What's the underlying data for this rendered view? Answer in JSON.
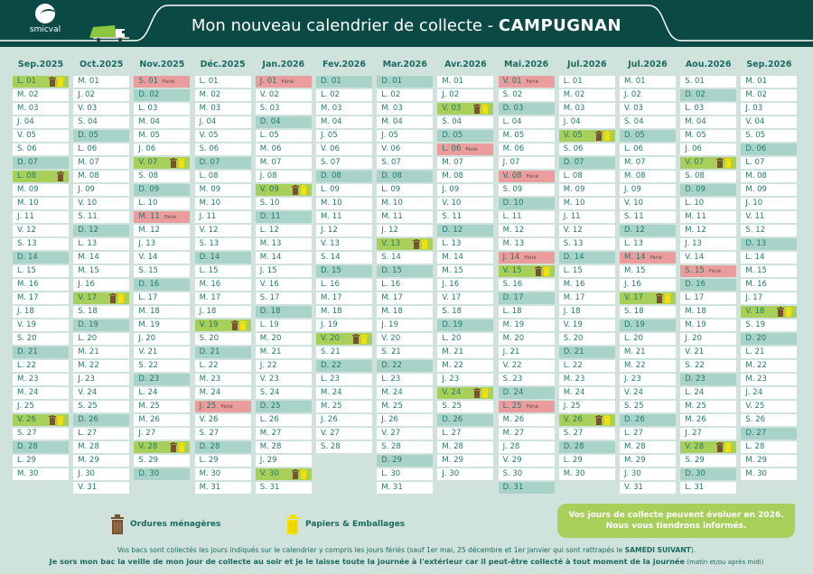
{
  "header": {
    "logo_text": "smicval",
    "title": "Mon nouveau calendrier de collecte - ",
    "commune": "CAMPUGNAN"
  },
  "colors": {
    "header": "#0b4a44",
    "background": "#cfe2dc",
    "sunday": "#a9d3c9",
    "holiday": "#eb9c9c",
    "collection": "#a8cf5a",
    "ordures": "#7a5230",
    "papiers": "#f5e000"
  },
  "months": [
    {
      "label": "Sep.2025",
      "days": [
        "L. 01",
        "M. 02",
        "M. 03",
        "J. 04",
        "V. 05",
        "S. 06",
        "D. 07",
        "L. 08",
        "M. 09",
        "M. 10",
        "J. 11",
        "V. 12",
        "S. 13",
        "D. 14",
        "L. 15",
        "M. 16",
        "M. 17",
        "J. 18",
        "V. 19",
        "S. 20",
        "D. 21",
        "L. 22",
        "M. 23",
        "M. 24",
        "J. 25",
        "V. 26",
        "S. 27",
        "D. 28",
        "L. 29",
        "M. 30"
      ],
      "holidays": {},
      "collections": {
        "01": [
          "ordures",
          "papiers"
        ],
        "08": [
          "ordures"
        ],
        "26": [
          "ordures",
          "papiers"
        ]
      }
    },
    {
      "label": "Oct.2025",
      "days": [
        "M. 01",
        "J. 02",
        "V. 03",
        "S. 04",
        "D. 05",
        "L. 06",
        "M. 07",
        "M. 08",
        "J. 09",
        "V. 10",
        "S. 11",
        "D. 12",
        "L. 13",
        "M. 14",
        "M. 15",
        "J. 16",
        "V. 17",
        "S. 18",
        "D. 19",
        "L. 20",
        "M. 21",
        "M. 22",
        "J. 23",
        "V. 24",
        "S. 25",
        "D. 26",
        "L. 27",
        "M. 28",
        "M. 29",
        "J. 30",
        "V. 31"
      ],
      "holidays": {},
      "collections": {
        "17": [
          "ordures",
          "papiers"
        ]
      }
    },
    {
      "label": "Nov.2025",
      "days": [
        "S. 01",
        "D. 02",
        "L. 03",
        "M. 04",
        "M. 05",
        "J. 06",
        "V. 07",
        "S. 08",
        "D. 09",
        "L. 10",
        "M. 11",
        "M. 12",
        "J. 13",
        "V. 14",
        "S. 15",
        "D. 16",
        "L. 17",
        "M. 18",
        "M. 19",
        "J. 20",
        "V. 21",
        "S. 22",
        "D. 23",
        "L. 24",
        "M. 25",
        "M. 26",
        "J. 27",
        "V. 28",
        "S. 29",
        "D. 30"
      ],
      "holidays": {
        "01": "Férié",
        "11": "Férié"
      },
      "collections": {
        "07": [
          "ordures",
          "papiers"
        ],
        "28": [
          "ordures",
          "papiers"
        ]
      }
    },
    {
      "label": "Déc.2025",
      "days": [
        "L. 01",
        "M. 02",
        "M. 03",
        "J. 04",
        "V. 05",
        "S. 06",
        "D. 07",
        "L. 08",
        "M. 09",
        "M. 10",
        "J. 11",
        "V. 12",
        "S. 13",
        "D. 14",
        "L. 15",
        "M. 16",
        "M. 17",
        "J. 18",
        "V. 19",
        "S. 20",
        "D. 21",
        "L. 22",
        "M. 23",
        "M. 24",
        "J. 25",
        "V. 26",
        "S. 27",
        "D. 28",
        "L. 29",
        "M. 30",
        "M. 31"
      ],
      "holidays": {
        "25": "Férié"
      },
      "collections": {
        "19": [
          "ordures",
          "papiers"
        ]
      }
    },
    {
      "label": "Jan.2026",
      "days": [
        "J. 01",
        "V. 02",
        "S. 03",
        "D. 04",
        "L. 05",
        "M. 06",
        "M. 07",
        "J. 08",
        "V. 09",
        "S. 10",
        "D. 11",
        "L. 12",
        "M. 13",
        "M. 14",
        "J. 15",
        "V. 16",
        "S. 17",
        "D. 18",
        "L. 19",
        "M. 20",
        "M. 21",
        "J. 22",
        "V. 23",
        "S. 24",
        "D. 25",
        "L. 26",
        "M. 27",
        "M. 28",
        "J. 29",
        "V. 30",
        "S. 31"
      ],
      "holidays": {
        "01": "Férié"
      },
      "collections": {
        "09": [
          "ordures",
          "papiers"
        ],
        "30": [
          "ordures",
          "papiers"
        ]
      }
    },
    {
      "label": "Fev.2026",
      "days": [
        "D. 01",
        "L. 02",
        "M. 03",
        "M. 04",
        "J. 05",
        "V. 06",
        "S. 07",
        "D. 08",
        "L. 09",
        "M. 10",
        "M. 11",
        "J. 12",
        "V. 13",
        "S. 14",
        "D. 15",
        "L. 16",
        "M. 17",
        "M. 18",
        "J. 19",
        "V. 20",
        "S. 21",
        "D. 22",
        "L. 23",
        "M. 24",
        "M. 25",
        "J. 26",
        "V. 27",
        "S. 28"
      ],
      "holidays": {},
      "collections": {
        "20": [
          "ordures",
          "papiers"
        ]
      }
    },
    {
      "label": "Mar.2026",
      "days": [
        "D. 01",
        "L. 02",
        "M. 03",
        "M. 04",
        "J. 05",
        "V. 06",
        "S. 07",
        "D. 08",
        "L. 09",
        "M. 10",
        "M. 11",
        "J. 12",
        "V. 13",
        "S. 14",
        "D. 15",
        "L. 16",
        "M. 17",
        "M. 18",
        "J. 19",
        "V. 20",
        "S. 21",
        "D. 22",
        "L. 23",
        "M. 24",
        "M. 25",
        "J. 26",
        "V. 27",
        "S. 28",
        "D. 29",
        "L. 30",
        "M. 31"
      ],
      "holidays": {},
      "collections": {
        "13": [
          "ordures",
          "papiers"
        ]
      }
    },
    {
      "label": "Avr.2026",
      "days": [
        "M. 01",
        "J. 02",
        "V. 03",
        "S. 04",
        "D. 05",
        "L. 06",
        "M. 07",
        "M. 08",
        "J. 09",
        "V. 10",
        "S. 11",
        "D. 12",
        "L. 13",
        "M. 14",
        "M. 15",
        "J. 16",
        "V. 17",
        "S. 18",
        "D. 19",
        "L. 20",
        "M. 21",
        "M. 22",
        "J. 23",
        "V. 24",
        "S. 25",
        "D. 26",
        "L. 27",
        "M. 28",
        "M. 29",
        "J. 30"
      ],
      "holidays": {
        "06": "Férié"
      },
      "collections": {
        "03": [
          "ordures",
          "papiers"
        ],
        "24": [
          "ordures",
          "papiers"
        ]
      }
    },
    {
      "label": "Mai.2026",
      "days": [
        "V. 01",
        "S. 02",
        "D. 03",
        "L. 04",
        "M. 05",
        "M. 06",
        "J. 07",
        "V. 08",
        "S. 09",
        "D. 10",
        "L. 11",
        "M. 12",
        "M. 13",
        "J. 14",
        "V. 15",
        "S. 16",
        "D. 17",
        "L. 18",
        "M. 19",
        "M. 20",
        "J. 21",
        "V. 22",
        "S. 23",
        "D. 24",
        "L. 25",
        "M. 26",
        "M. 27",
        "J. 28",
        "V. 29",
        "S. 30",
        "D. 31"
      ],
      "holidays": {
        "01": "Férié",
        "08": "Férié",
        "14": "Férié",
        "25": "Férié"
      },
      "collections": {
        "15": [
          "ordures",
          "papiers"
        ]
      }
    },
    {
      "label": "Jul.2026",
      "days": [
        "L. 01",
        "M. 02",
        "M. 03",
        "J. 04",
        "V. 05",
        "S. 06",
        "D. 07",
        "L. 08",
        "M. 09",
        "M. 10",
        "J. 11",
        "V. 12",
        "S. 13",
        "D. 14",
        "L. 15",
        "M. 16",
        "M. 17",
        "J. 18",
        "V. 19",
        "S. 20",
        "D. 21",
        "L. 22",
        "M. 23",
        "M. 24",
        "J. 25",
        "V. 26",
        "S. 27",
        "D. 28",
        "L. 29",
        "M. 30"
      ],
      "holidays": {},
      "collections": {
        "05": [
          "ordures",
          "papiers"
        ],
        "26": [
          "ordures",
          "papiers"
        ]
      }
    },
    {
      "label": "Jul.2026",
      "days": [
        "M. 01",
        "J. 02",
        "V. 03",
        "S. 04",
        "D. 05",
        "L. 06",
        "M. 07",
        "M. 08",
        "J. 09",
        "V. 10",
        "S. 11",
        "D. 12",
        "L. 13",
        "M. 14",
        "M. 15",
        "J. 16",
        "V. 17",
        "S. 18",
        "D. 19",
        "L. 20",
        "M. 21",
        "M. 22",
        "J. 23",
        "V. 24",
        "S. 25",
        "D. 26",
        "L. 27",
        "M. 28",
        "M. 29",
        "J. 30",
        "V. 31"
      ],
      "holidays": {
        "14": "Férié"
      },
      "collections": {
        "17": [
          "ordures",
          "papiers"
        ]
      }
    },
    {
      "label": "Aou.2026",
      "days": [
        "S. 01",
        "D. 02",
        "L. 03",
        "M. 04",
        "M. 05",
        "J. 06",
        "V. 07",
        "S. 08",
        "D. 09",
        "L. 10",
        "M. 11",
        "M. 12",
        "J. 13",
        "V. 14",
        "S. 15",
        "D. 16",
        "L. 17",
        "M. 18",
        "M. 19",
        "J. 20",
        "V. 21",
        "S. 22",
        "D. 23",
        "L. 24",
        "M. 25",
        "M. 26",
        "J. 27",
        "V. 28",
        "S. 29",
        "D. 30",
        "L. 31"
      ],
      "holidays": {
        "15": "Férié"
      },
      "collections": {
        "07": [
          "ordures",
          "papiers"
        ],
        "28": [
          "ordures",
          "papiers"
        ]
      }
    },
    {
      "label": "Sep.2026",
      "days": [
        "M. 01",
        "M. 02",
        "J. 03",
        "V. 04",
        "S. 05",
        "D. 06",
        "L. 07",
        "M. 08",
        "M. 09",
        "J. 10",
        "V. 11",
        "S. 12",
        "D. 13",
        "L. 14",
        "M. 15",
        "M. 16",
        "J. 17",
        "V. 18",
        "S. 19",
        "D. 20",
        "L. 21",
        "M. 22",
        "M. 23",
        "J. 24",
        "V. 25",
        "S. 26",
        "D. 27",
        "L. 28",
        "M. 29",
        "M. 30"
      ],
      "holidays": {},
      "collections": {
        "18": [
          "ordures",
          "papiers"
        ]
      }
    }
  ],
  "legend": {
    "ordures": "Ordures ménagères",
    "papiers": "Papiers & Emballages"
  },
  "note": {
    "line1": "Vos jours de collecte peuvent évoluer en 2026.",
    "line2": "Nous vous tiendrons informés."
  },
  "footer": {
    "line1": "Vos bacs sont collectés les jours indiqués sur le calendrier y compris les jours fériés (sauf 1er mai, 25 décembre et 1er janvier qui sont rattrapés le ",
    "line1_bold": "SAMEDI SUIVANT",
    "line1_end": ").",
    "line2": "Je sors mon bac la veille de mon jour de collecte au soir et je le laisse toute la journée à l'extérieur car il peut-être collecté à tout moment de la journée",
    "line2_small": " (matin et/ou après midi)"
  }
}
